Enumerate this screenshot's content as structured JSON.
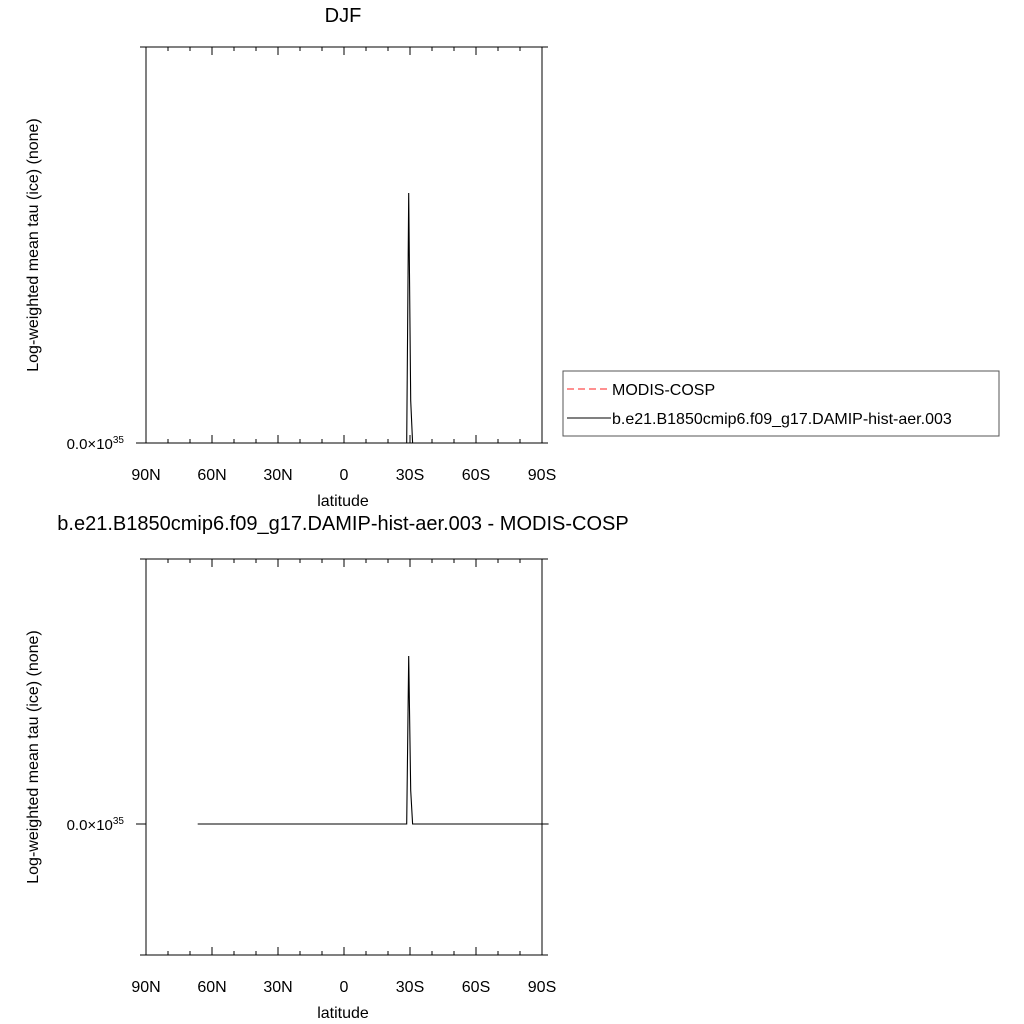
{
  "chart_data": [
    {
      "type": "line",
      "title": "DJF",
      "xlabel": "latitude",
      "ylabel": "Log-weighted mean tau (ice) (none)",
      "x_ticks": [
        "90N",
        "60N",
        "30N",
        "0",
        "30S",
        "60S",
        "90S"
      ],
      "y_tick_label": "0.0×10",
      "y_tick_exp": "35",
      "xlim": [
        -90,
        90
      ],
      "series": [
        {
          "name": "MODIS-COSP",
          "color": "#ff4d4d",
          "dash": "dashed",
          "x": [],
          "y": []
        },
        {
          "name": "b.e21.B1850cmip6.f09_g17.DAMIP-hist-aer.003",
          "color": "#000000",
          "dash": "solid",
          "x": [
            28.5,
            29.4,
            30.3,
            31.2,
            32.1
          ],
          "y": [
            0.0,
            1.0,
            0.17,
            0.0,
            0.0
          ]
        }
      ]
    },
    {
      "type": "line",
      "title": "b.e21.B1850cmip6.f09_g17.DAMIP-hist-aer.003 - MODIS-COSP",
      "xlabel": "latitude",
      "ylabel": "Log-weighted mean tau (ice) (none)",
      "x_ticks": [
        "90N",
        "60N",
        "30N",
        "0",
        "30S",
        "60S",
        "90S"
      ],
      "y_tick_label": "0.0×10",
      "y_tick_exp": "35",
      "xlim": [
        -90,
        90
      ],
      "series": [
        {
          "color": "#000000",
          "dash": "solid",
          "x": [
            -66.5,
            -40,
            -10,
            10,
            28.5,
            29.4,
            30.3,
            31.2,
            32.1,
            60,
            93
          ],
          "y": [
            0,
            0,
            0,
            0,
            0,
            1.0,
            0.2,
            0,
            0,
            0,
            0
          ]
        }
      ]
    }
  ],
  "legend": {
    "items": [
      {
        "label": "MODIS-COSP",
        "color": "#ff4d4d",
        "dash": "dashed"
      },
      {
        "label": "b.e21.B1850cmip6.f09_g17.DAMIP-hist-aer.003",
        "color": "#000000",
        "dash": "solid"
      }
    ]
  }
}
